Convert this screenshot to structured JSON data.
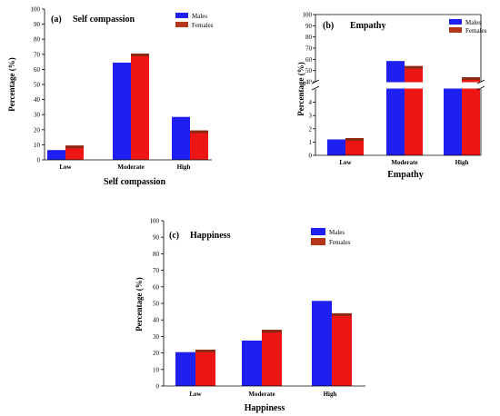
{
  "chart_data": [
    {
      "id": "a",
      "type": "bar",
      "panel_label": "(a)",
      "title": "Self compassion",
      "xlabel": "Self compassion",
      "ylabel": "Percentage (%)",
      "categories": [
        "Low",
        "Moderate",
        "High"
      ],
      "ylim": [
        0,
        100
      ],
      "yticks": [
        0,
        10,
        20,
        30,
        40,
        50,
        60,
        70,
        80,
        90,
        100
      ],
      "series": [
        {
          "name": "Males",
          "values": [
            6.5,
            64.5,
            28.5
          ]
        },
        {
          "name": "Females",
          "values": [
            9.5,
            70.5,
            19.5
          ]
        }
      ],
      "legend": "top-right",
      "grid": false
    },
    {
      "id": "b",
      "type": "bar",
      "panel_label": "(b)",
      "title": "Empathy",
      "xlabel": "Empathy",
      "ylabel": "Percentage (%)",
      "categories": [
        "Low",
        "Moderate",
        "High"
      ],
      "axis_break": true,
      "ylim_lower": [
        0,
        5
      ],
      "ylim_upper": [
        40,
        100
      ],
      "yticks_lower": [
        0,
        1,
        2,
        3,
        4
      ],
      "yticks_upper": [
        40,
        50,
        60,
        70,
        80,
        90,
        100
      ],
      "series": [
        {
          "name": "Males",
          "values": [
            1.2,
            58.5,
            39.0
          ]
        },
        {
          "name": "Females",
          "values": [
            1.3,
            54.0,
            44.0
          ]
        }
      ],
      "legend": "top-right",
      "grid": false
    },
    {
      "id": "c",
      "type": "bar",
      "panel_label": "(c)",
      "title": "Happiness",
      "xlabel": "Happiness",
      "ylabel": "Percentage (%)",
      "categories": [
        "Low",
        "Moderate",
        "High"
      ],
      "ylim": [
        0,
        100
      ],
      "yticks": [
        0,
        10,
        20,
        30,
        40,
        50,
        60,
        70,
        80,
        90,
        100
      ],
      "series": [
        {
          "name": "Males",
          "values": [
            20.5,
            27.5,
            51.5
          ]
        },
        {
          "name": "Females",
          "values": [
            22.0,
            34.0,
            44.0
          ]
        }
      ],
      "legend": "top-right",
      "grid": false
    }
  ],
  "colors": {
    "males": "#1f1ff0",
    "females": "#ee1515",
    "females_cap": "#8b2a12",
    "legend_females": "#b5371a"
  }
}
